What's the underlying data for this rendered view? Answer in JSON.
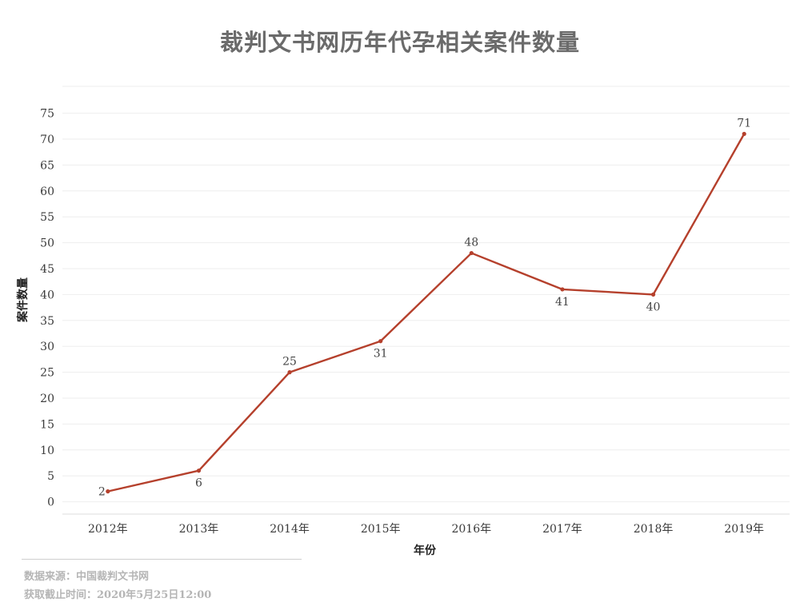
{
  "title": "裁判文书网历年代孕相关案件数量",
  "chart_data": {
    "type": "line",
    "title": "裁判文书网历年代孕相关案件数量",
    "xlabel": "年份",
    "ylabel": "案件数量",
    "categories": [
      "2012年",
      "2013年",
      "2014年",
      "2015年",
      "2016年",
      "2017年",
      "2018年",
      "2019年"
    ],
    "series": [
      {
        "values": [
          2,
          6,
          25,
          31,
          48,
          41,
          40,
          71
        ],
        "color": "#b5402c"
      }
    ],
    "y_ticks": [
      "75",
      "70",
      "65",
      "60",
      "55",
      "50",
      "45",
      "40",
      "35",
      "30",
      "25",
      "20",
      "15",
      "10",
      "5",
      "0"
    ],
    "ylim": [
      0,
      75
    ],
    "grid": true,
    "legend": "none"
  },
  "footer": {
    "source": "数据来源：中国裁判文书网",
    "cutoff": "获取截止时间：2020年5月25日12:00"
  }
}
